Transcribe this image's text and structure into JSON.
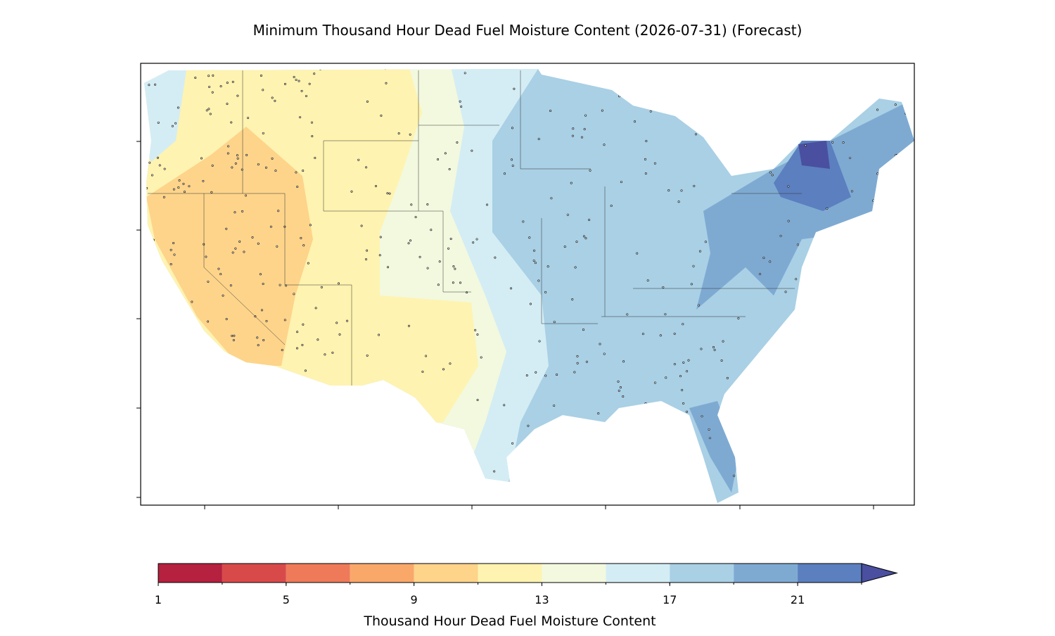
{
  "chart_data": {
    "type": "map",
    "title": "Minimum Thousand Hour Dead Fuel Moisture Content (2026-07-31) (Forecast)",
    "colorbar": {
      "label": "Thousand Hour Dead Fuel Moisture Content",
      "bounds": [
        1,
        3,
        5,
        7,
        9,
        11,
        13,
        15,
        17,
        19,
        21,
        23
      ],
      "colors": [
        "#b5213f",
        "#d84a4a",
        "#ee7a5a",
        "#f9a86a",
        "#fdd48a",
        "#fef3b0",
        "#f3f9de",
        "#d4edf4",
        "#a9d0e5",
        "#7eaad2",
        "#5b7fbf"
      ],
      "extend_color": "#4a4fa0",
      "ticks": [
        1,
        5,
        9,
        13,
        17,
        21
      ]
    }
  }
}
